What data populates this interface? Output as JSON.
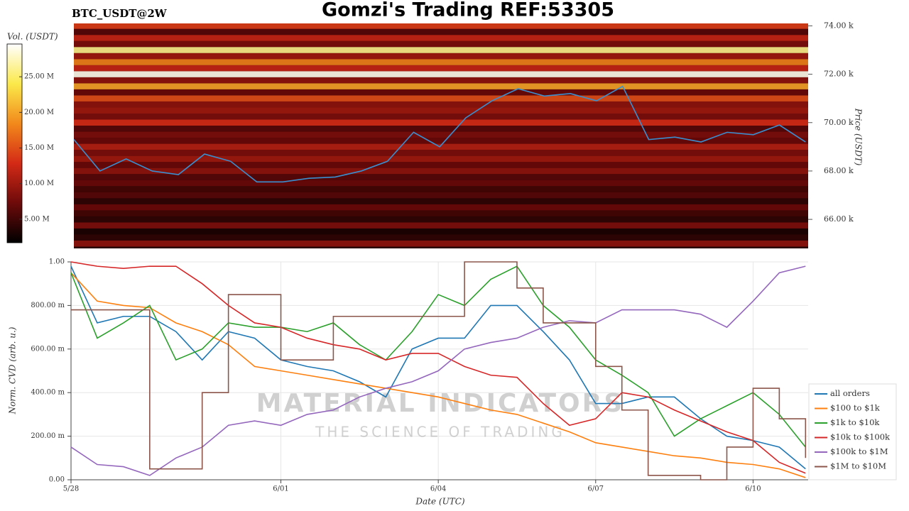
{
  "chart_data": [
    {
      "type": "heatmap",
      "title": "Gomzi's Trading REF:53305",
      "subtitle": "BTC_USDT@2W",
      "ylabel": "Price (USDT)",
      "colorbar_label": "Vol. (USDT)",
      "colorscale": [
        "#000000",
        "#6e0a0a",
        "#d42a16",
        "#f2891b",
        "#fbe94a",
        "#ffffff"
      ],
      "clim": [
        1700000,
        29600000
      ],
      "cticks": [
        {
          "value": 5000000,
          "label": "5.00 M"
        },
        {
          "value": 10000000,
          "label": "10.00 M"
        },
        {
          "value": 15000000,
          "label": "15.00 M"
        },
        {
          "value": 20000000,
          "label": "20.00 M"
        },
        {
          "value": 25000000,
          "label": "25.00 M"
        }
      ],
      "ylim": [
        64800,
        74100
      ],
      "yticks": [
        {
          "value": 66000,
          "label": "66.00 k"
        },
        {
          "value": 68000,
          "label": "68.00 k"
        },
        {
          "value": 70000,
          "label": "70.00 k"
        },
        {
          "value": 72000,
          "label": "72.00 k"
        },
        {
          "value": 74000,
          "label": "74.00 k"
        }
      ],
      "levels": [
        65000,
        65250,
        65500,
        65750,
        66000,
        66250,
        66500,
        66750,
        67000,
        67250,
        67500,
        67750,
        68000,
        68250,
        68500,
        68750,
        69000,
        69250,
        69500,
        69750,
        70000,
        70250,
        70500,
        70750,
        71000,
        71250,
        71500,
        71750,
        72000,
        72250,
        72500,
        72750,
        73000,
        73250,
        73500,
        73750,
        74000
      ],
      "volumes": [
        9000000,
        4000000,
        3000000,
        8000000,
        4000000,
        5000000,
        7000000,
        4000000,
        6000000,
        5000000,
        7000000,
        6000000,
        9000000,
        7000000,
        10000000,
        8000000,
        11000000,
        7000000,
        8000000,
        6000000,
        13000000,
        8000000,
        10000000,
        9000000,
        15000000,
        7000000,
        20000000,
        9000000,
        29000000,
        12000000,
        18000000,
        10000000,
        26000000,
        8000000,
        12000000,
        6000000,
        14000000
      ],
      "xlim": [
        0,
        14.05
      ],
      "x": [
        0,
        0.5,
        1,
        1.5,
        2,
        2.5,
        3,
        3.5,
        4,
        4.5,
        5,
        5.5,
        6,
        6.5,
        7,
        7.5,
        8,
        8.5,
        9,
        9.5,
        10,
        10.5,
        11,
        11.5,
        12,
        12.5,
        13,
        13.5,
        14
      ],
      "series": [
        {
          "color": "#3a8fd0",
          "values": [
            69300,
            68000,
            68500,
            68000,
            67850,
            68700,
            68400,
            67550,
            67550,
            67700,
            67750,
            68000,
            68400,
            69600,
            69000,
            70200,
            70900,
            71400,
            71100,
            71200,
            70900,
            71500,
            69300,
            69400,
            69200,
            69600,
            69500,
            69900,
            69200
          ]
        }
      ]
    },
    {
      "type": "line",
      "ylabel": "Norm. CVD (arb. u.)",
      "xlabel": "Date (UTC)",
      "watermark": "MATERIAL INDICATORS",
      "watermark_sub": "THE SCIENCE OF TRADING",
      "grid": true,
      "legend": "lower-right",
      "xlim": [
        0,
        14.05
      ],
      "xticks": [
        {
          "value": 0,
          "label": "5/28"
        },
        {
          "value": 4,
          "label": "6/01"
        },
        {
          "value": 7,
          "label": "6/04"
        },
        {
          "value": 10,
          "label": "6/07"
        },
        {
          "value": 13,
          "label": "6/10"
        }
      ],
      "ylim": [
        0,
        1
      ],
      "yticks": [
        {
          "value": 0,
          "label": "0.00"
        },
        {
          "value": 0.2,
          "label": "200.00 m"
        },
        {
          "value": 0.4,
          "label": "400.00 m"
        },
        {
          "value": 0.6,
          "label": "600.00 m"
        },
        {
          "value": 0.8,
          "label": "800.00 m"
        },
        {
          "value": 1,
          "label": "1.00"
        }
      ],
      "x": [
        0,
        0.5,
        1,
        1.5,
        2,
        2.5,
        3,
        3.5,
        4,
        4.5,
        5,
        5.5,
        6,
        6.5,
        7,
        7.5,
        8,
        8.5,
        9,
        9.5,
        10,
        10.5,
        11,
        11.5,
        12,
        12.5,
        13,
        13.5,
        14
      ],
      "series": [
        {
          "name": "all orders",
          "color": "#1f77b4",
          "values": [
            0.98,
            0.72,
            0.75,
            0.75,
            0.68,
            0.55,
            0.68,
            0.65,
            0.55,
            0.52,
            0.5,
            0.45,
            0.38,
            0.6,
            0.65,
            0.65,
            0.8,
            0.8,
            0.68,
            0.55,
            0.35,
            0.35,
            0.38,
            0.38,
            0.28,
            0.2,
            0.18,
            0.15,
            0.05
          ]
        },
        {
          "name": "$100 to $1k",
          "color": "#ff7f0e",
          "values": [
            0.95,
            0.82,
            0.8,
            0.79,
            0.72,
            0.68,
            0.62,
            0.52,
            0.5,
            0.48,
            0.46,
            0.44,
            0.42,
            0.4,
            0.38,
            0.35,
            0.32,
            0.3,
            0.26,
            0.22,
            0.17,
            0.15,
            0.13,
            0.11,
            0.1,
            0.08,
            0.07,
            0.05,
            0.01
          ]
        },
        {
          "name": "$1k to $10k",
          "color": "#2ca02c",
          "values": [
            0.95,
            0.65,
            0.72,
            0.8,
            0.55,
            0.6,
            0.72,
            0.7,
            0.7,
            0.68,
            0.72,
            0.62,
            0.55,
            0.68,
            0.85,
            0.8,
            0.92,
            0.98,
            0.8,
            0.7,
            0.55,
            0.48,
            0.4,
            0.2,
            0.28,
            0.34,
            0.4,
            0.3,
            0.15
          ]
        },
        {
          "name": "$10k to $100k",
          "color": "#d62728",
          "values": [
            1.0,
            0.98,
            0.97,
            0.98,
            0.98,
            0.9,
            0.8,
            0.72,
            0.7,
            0.65,
            0.62,
            0.6,
            0.55,
            0.58,
            0.58,
            0.52,
            0.48,
            0.47,
            0.35,
            0.25,
            0.28,
            0.4,
            0.38,
            0.32,
            0.27,
            0.22,
            0.18,
            0.08,
            0.03
          ]
        },
        {
          "name": "$100k to $1M",
          "color": "#9467bd",
          "values": [
            0.15,
            0.07,
            0.06,
            0.02,
            0.1,
            0.15,
            0.25,
            0.27,
            0.25,
            0.3,
            0.32,
            0.38,
            0.42,
            0.45,
            0.5,
            0.6,
            0.63,
            0.65,
            0.7,
            0.73,
            0.72,
            0.78,
            0.78,
            0.78,
            0.76,
            0.7,
            0.82,
            0.95,
            0.98
          ]
        },
        {
          "name": "$1M to $10M",
          "color": "#8c564b",
          "step": true,
          "values": [
            0.78,
            0.78,
            0.78,
            0.05,
            0.05,
            0.4,
            0.85,
            0.85,
            0.55,
            0.55,
            0.75,
            0.75,
            0.75,
            0.75,
            0.75,
            1.0,
            1.0,
            0.88,
            0.72,
            0.72,
            0.52,
            0.32,
            0.02,
            0.02,
            0.0,
            0.15,
            0.42,
            0.28,
            0.1
          ]
        }
      ]
    }
  ]
}
